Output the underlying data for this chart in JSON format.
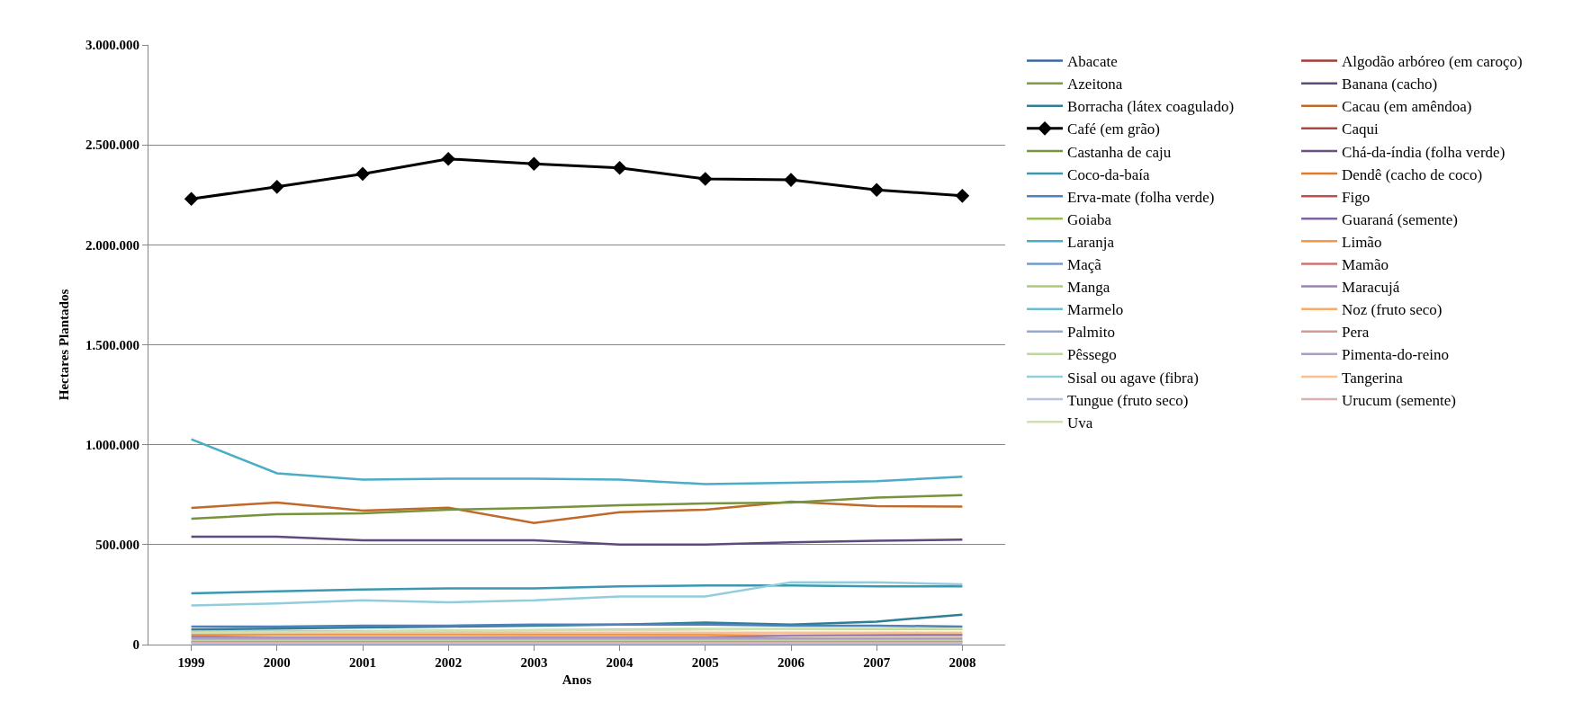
{
  "chart_data": {
    "type": "line",
    "xlabel": "Anos",
    "ylabel": "Hectares Plantados",
    "categories": [
      "1999",
      "2000",
      "2001",
      "2002",
      "2003",
      "2004",
      "2005",
      "2006",
      "2007",
      "2008"
    ],
    "ylim": [
      0,
      3000000
    ],
    "yticks": [
      {
        "value": 0,
        "label": "0"
      },
      {
        "value": 500000,
        "label": "500.000"
      },
      {
        "value": 1000000,
        "label": "1.000.000"
      },
      {
        "value": 1500000,
        "label": "1.500.000"
      },
      {
        "value": 2000000,
        "label": "2.000.000"
      },
      {
        "value": 2500000,
        "label": "2.500.000"
      },
      {
        "value": 3000000,
        "label": "3.000.000"
      }
    ],
    "grid": "y",
    "legend": "right",
    "line_style": "solid",
    "marker": "none",
    "series": [
      {
        "name": "Abacate",
        "color": "#3a679c",
        "values": [
          null,
          null,
          null,
          null,
          null,
          null,
          null,
          null,
          null,
          null
        ]
      },
      {
        "name": "Algodão arbóreo (em caroço)",
        "color": "#9f3b38",
        "values": [
          null,
          null,
          null,
          null,
          null,
          null,
          null,
          null,
          null,
          null
        ]
      },
      {
        "name": "Azeitona",
        "color": "#7e9c40",
        "values": [
          null,
          null,
          null,
          null,
          null,
          null,
          null,
          null,
          null,
          null
        ]
      },
      {
        "name": "Banana (cacho)",
        "color": "#5e4a7c",
        "values": [
          540000,
          540000,
          522000,
          522000,
          522000,
          500000,
          500000,
          512000,
          520000,
          525000
        ]
      },
      {
        "name": "Borracha (látex coagulado)",
        "color": "#2f7f96",
        "values": [
          75000,
          80000,
          85000,
          90000,
          95000,
          100000,
          110000,
          100000,
          115000,
          150000
        ]
      },
      {
        "name": "Cacau (em amêndoa)",
        "color": "#c0692a",
        "values": [
          684000,
          711000,
          670000,
          685000,
          608000,
          662000,
          675000,
          715000,
          693000,
          690000
        ]
      },
      {
        "name": "Café (em grão)",
        "color": "#000000",
        "marker": "diamond",
        "values": [
          2230000,
          2290000,
          2355000,
          2430000,
          2405000,
          2385000,
          2330000,
          2325000,
          2275000,
          2245000
        ]
      },
      {
        "name": "Caqui",
        "color": "#b04541",
        "values": [
          null,
          null,
          null,
          null,
          null,
          null,
          null,
          null,
          null,
          null
        ]
      },
      {
        "name": "Castanha de caju",
        "color": "#77933c",
        "values": [
          630000,
          652000,
          657000,
          675000,
          684000,
          697000,
          706000,
          711000,
          735000,
          748000
        ]
      },
      {
        "name": "Chá-da-índia (folha verde)",
        "color": "#6a4f83",
        "values": [
          null,
          null,
          null,
          null,
          null,
          null,
          null,
          null,
          null,
          null
        ]
      },
      {
        "name": "Coco-da-baía",
        "color": "#3b98b0",
        "values": [
          256000,
          266000,
          276000,
          281000,
          281000,
          291000,
          296000,
          296000,
          291000,
          291000
        ]
      },
      {
        "name": "Dendê (cacho de coco)",
        "color": "#e07b2c",
        "values": [
          null,
          null,
          null,
          null,
          null,
          null,
          null,
          null,
          null,
          null
        ]
      },
      {
        "name": "Erva-mate (folha verde)",
        "color": "#4f81bd",
        "values": [
          90000,
          90000,
          95000,
          95000,
          100000,
          100000,
          100000,
          95000,
          95000,
          90000
        ]
      },
      {
        "name": "Figo",
        "color": "#c0504d",
        "values": [
          null,
          null,
          null,
          null,
          null,
          null,
          null,
          null,
          null,
          null
        ]
      },
      {
        "name": "Goiaba",
        "color": "#9bbb59",
        "values": [
          null,
          null,
          null,
          null,
          null,
          null,
          null,
          null,
          null,
          null
        ]
      },
      {
        "name": "Guaraná (semente)",
        "color": "#8064a2",
        "values": [
          14000,
          15000,
          15000,
          15000,
          16000,
          16000,
          16000,
          16000,
          16000,
          16000
        ]
      },
      {
        "name": "Laranja",
        "color": "#4bacc6",
        "values": [
          1027000,
          857000,
          825000,
          830000,
          830000,
          825000,
          803000,
          810000,
          817000,
          840000
        ]
      },
      {
        "name": "Limão",
        "color": "#f79646",
        "values": [
          50000,
          50000,
          50000,
          50000,
          50000,
          50000,
          48000,
          45000,
          45000,
          45000
        ]
      },
      {
        "name": "Maçã",
        "color": "#729aca",
        "values": [
          null,
          null,
          null,
          null,
          null,
          null,
          null,
          null,
          null,
          null
        ]
      },
      {
        "name": "Mamão",
        "color": "#cd7371",
        "values": [
          null,
          null,
          null,
          null,
          null,
          null,
          null,
          null,
          null,
          null
        ]
      },
      {
        "name": "Manga",
        "color": "#afc97a",
        "values": [
          65000,
          65000,
          68000,
          70000,
          72000,
          75000,
          78000,
          78000,
          78000,
          78000
        ]
      },
      {
        "name": "Maracujá",
        "color": "#9983b5",
        "values": [
          40000,
          35000,
          35000,
          35000,
          36000,
          36000,
          36000,
          45000,
          47000,
          50000
        ]
      },
      {
        "name": "Marmelo",
        "color": "#6fbdd1",
        "values": [
          null,
          null,
          null,
          null,
          null,
          null,
          null,
          null,
          null,
          null
        ]
      },
      {
        "name": "Noz (fruto seco)",
        "color": "#f9ab6b",
        "values": [
          null,
          null,
          null,
          null,
          null,
          null,
          null,
          null,
          null,
          null
        ]
      },
      {
        "name": "Palmito",
        "color": "#95a8d2",
        "values": [
          null,
          null,
          null,
          null,
          null,
          null,
          null,
          null,
          null,
          null
        ]
      },
      {
        "name": "Pera",
        "color": "#d49896",
        "values": [
          null,
          null,
          null,
          null,
          null,
          null,
          null,
          null,
          null,
          null
        ]
      },
      {
        "name": "Pêssego",
        "color": "#bed5a0",
        "values": [
          22000,
          22000,
          22000,
          22000,
          22000,
          22000,
          22000,
          22000,
          22000,
          22000
        ]
      },
      {
        "name": "Pimenta-do-reino",
        "color": "#ab9ec0",
        "values": [
          30000,
          30000,
          30000,
          30000,
          30000,
          30000,
          30000,
          30000,
          30000,
          30000
        ]
      },
      {
        "name": "Sisal ou agave (fibra)",
        "color": "#93cddd",
        "values": [
          196000,
          206000,
          221000,
          211000,
          221000,
          241000,
          241000,
          312000,
          312000,
          301000
        ]
      },
      {
        "name": "Tangerina",
        "color": "#fac090",
        "values": [
          60000,
          60000,
          60000,
          60000,
          60000,
          60000,
          60000,
          60000,
          60000,
          60000
        ]
      },
      {
        "name": "Tungue (fruto seco)",
        "color": "#b9c2e0",
        "values": [
          1000,
          1000,
          1000,
          1000,
          1000,
          1000,
          1000,
          1000,
          1000,
          1000
        ]
      },
      {
        "name": "Urucum (semente)",
        "color": "#dcb0ae",
        "values": [
          10000,
          10000,
          10000,
          10000,
          10000,
          10000,
          10000,
          10000,
          10000,
          10000
        ]
      },
      {
        "name": "Uva",
        "color": "#cfe0b4",
        "values": [
          60000,
          62000,
          65000,
          70000,
          72000,
          73000,
          75000,
          78000,
          80000,
          80000
        ]
      }
    ]
  }
}
